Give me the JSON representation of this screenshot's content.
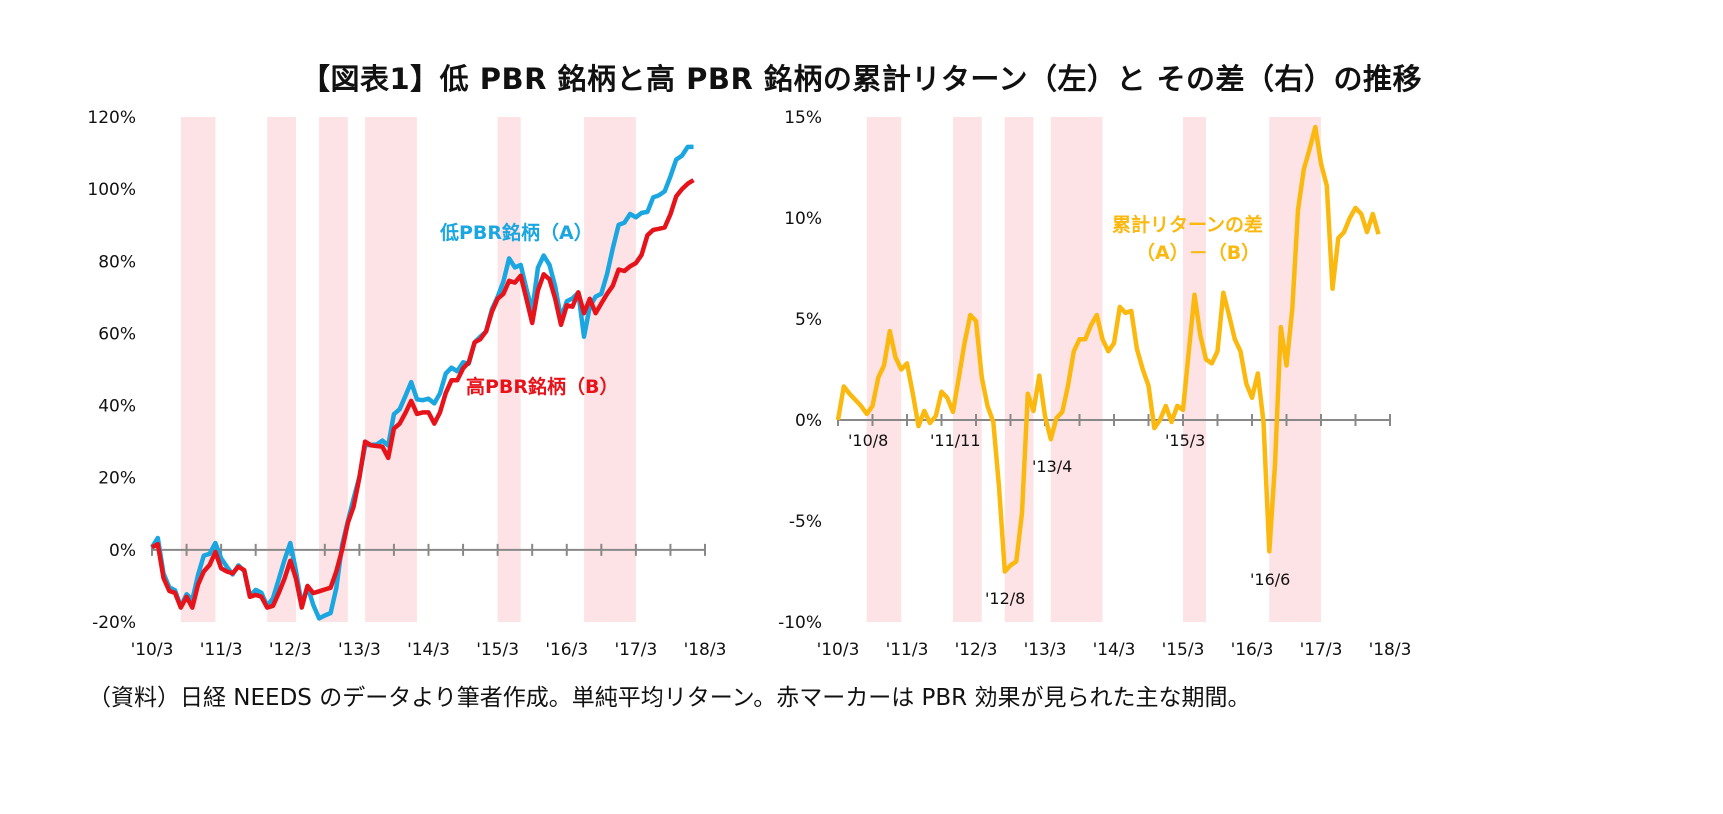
{
  "title": "【図表1】低 PBR 銘柄と高 PBR 銘柄の累計リターン（左）と その差（右）の推移",
  "footer": "（資料）日経 NEEDS のデータより筆者作成。単純平均リターン。赤マーカーは PBR 効果が見られた主な期間。",
  "colors": {
    "low_pbr": "#1aa6e0",
    "high_pbr": "#e6131b",
    "difference": "#fbb80f",
    "shading": "#fde3e5",
    "axis": "#888888"
  },
  "chart_data": [
    {
      "type": "line",
      "x": [
        "2010-03",
        "2010-04",
        "2010-05",
        "2010-06",
        "2010-07",
        "2010-08",
        "2010-09",
        "2010-10",
        "2010-11",
        "2010-12",
        "2011-01",
        "2011-02",
        "2011-03",
        "2011-04",
        "2011-05",
        "2011-06",
        "2011-07",
        "2011-08",
        "2011-09",
        "2011-10",
        "2011-11",
        "2011-12",
        "2012-01",
        "2012-02",
        "2012-03",
        "2012-04",
        "2012-05",
        "2012-06",
        "2012-07",
        "2012-08",
        "2012-09",
        "2012-10",
        "2012-11",
        "2012-12",
        "2013-01",
        "2013-02",
        "2013-03",
        "2013-04",
        "2013-05",
        "2013-06",
        "2013-07",
        "2013-08",
        "2013-09",
        "2013-10",
        "2013-11",
        "2013-12",
        "2014-01",
        "2014-02",
        "2014-03",
        "2014-04",
        "2014-05",
        "2014-06",
        "2014-07",
        "2014-08",
        "2014-09",
        "2014-10",
        "2014-11",
        "2014-12",
        "2015-01",
        "2015-02",
        "2015-03",
        "2015-04",
        "2015-05",
        "2015-06",
        "2015-07",
        "2015-08",
        "2015-09",
        "2015-10",
        "2015-11",
        "2015-12",
        "2016-01",
        "2016-02",
        "2016-03",
        "2016-04",
        "2016-05",
        "2016-06",
        "2016-07",
        "2016-08",
        "2016-09",
        "2016-10",
        "2016-11",
        "2016-12",
        "2017-01",
        "2017-02",
        "2017-03",
        "2017-04",
        "2017-05",
        "2017-06",
        "2017-07",
        "2017-08",
        "2017-09",
        "2017-10",
        "2017-11",
        "2017-12",
        "2018-01"
      ],
      "series": [
        {
          "name": "低PBR銘柄（A）",
          "color": "#1aa6e0",
          "values": [
            0.7,
            3.3,
            -6.5,
            -10.4,
            -11.2,
            -15.7,
            -12.3,
            -13.9,
            -6.9,
            -1.6,
            -1.1,
            1.9,
            -2.3,
            -4.7,
            -6.8,
            -4.3,
            -5.8,
            -12.8,
            -11.1,
            -11.9,
            -15.6,
            -13.4,
            -8.2,
            -2.8,
            1.9,
            -5.9,
            -15.3,
            -10.1,
            -15.3,
            -19.0,
            -18.2,
            -17.5,
            -10.6,
            1.3,
            8.0,
            14.2,
            20.2,
            29.0,
            29.1,
            29.2,
            30.3,
            28.9,
            37.6,
            39.0,
            42.7,
            46.5,
            41.7,
            41.5,
            41.9,
            40.6,
            43.4,
            48.9,
            50.5,
            49.5,
            52.0,
            51.6,
            57.5,
            59.1,
            60.5,
            66.7,
            70.1,
            74.4,
            80.8,
            78.3,
            79.0,
            72.4,
            66.3,
            78.2,
            81.6,
            79.0,
            73.0,
            64.2,
            68.9,
            69.7,
            71.3,
            59.1,
            67.4,
            70.2,
            71.0,
            76.5,
            83.6,
            90.1,
            90.7,
            93.1,
            92.2,
            93.4,
            93.7,
            97.7,
            98.3,
            99.4,
            103.5,
            108.2,
            109.3,
            111.7,
            111.7
          ]
        },
        {
          "name": "高PBR銘柄（B）",
          "color": "#e6131b",
          "values": [
            0.7,
            1.6,
            -7.8,
            -11.4,
            -11.9,
            -16.0,
            -13.0,
            -16.0,
            -9.6,
            -6.0,
            -4.2,
            -0.6,
            -5.1,
            -6.0,
            -6.5,
            -4.7,
            -5.6,
            -13.0,
            -12.5,
            -13.0,
            -16.0,
            -15.5,
            -12.0,
            -8.0,
            -3.0,
            -8.0,
            -16.0,
            -10.0,
            -12.0,
            -11.5,
            -11.0,
            -10.5,
            -6.0,
            0.0,
            7.5,
            12.0,
            20.0,
            30.0,
            29.0,
            28.8,
            28.6,
            25.5,
            33.6,
            35.0,
            38.0,
            41.3,
            37.7,
            38.1,
            38.1,
            35.0,
            38.1,
            43.5,
            47.0,
            47.0,
            50.3,
            52.0,
            57.5,
            58.4,
            60.6,
            66.0,
            69.6,
            71.0,
            74.6,
            74.1,
            76.0,
            69.6,
            62.9,
            71.9,
            76.4,
            75.0,
            69.6,
            62.4,
            67.8,
            67.4,
            71.4,
            65.6,
            69.6,
            65.6,
            68.3,
            71.0,
            73.2,
            77.7,
            77.3,
            78.6,
            79.5,
            81.8,
            87.2,
            88.7,
            89.0,
            89.4,
            93.0,
            98.0,
            100.0,
            101.5,
            102.5
          ]
        }
      ],
      "ylim": [
        -20,
        120
      ],
      "yticks": [
        "120%",
        "100%",
        "80%",
        "60%",
        "40%",
        "20%",
        "0%",
        "-20%"
      ],
      "xtick_labels": [
        "'10/3",
        "'11/3",
        "'12/3",
        "'13/3",
        "'14/3",
        "'15/3",
        "'16/3",
        "'17/3",
        "'18/3"
      ],
      "shaded_periods": [
        [
          "2010-08",
          "2011-01"
        ],
        [
          "2011-11",
          "2012-03"
        ],
        [
          "2012-08",
          "2012-12"
        ],
        [
          "2013-04",
          "2013-12"
        ],
        [
          "2015-03",
          "2015-06"
        ],
        [
          "2016-06",
          "2017-02"
        ]
      ],
      "grid": false
    },
    {
      "type": "line",
      "x": [
        "2010-03",
        "2010-04",
        "2010-05",
        "2010-06",
        "2010-07",
        "2010-08",
        "2010-09",
        "2010-10",
        "2010-11",
        "2010-12",
        "2011-01",
        "2011-02",
        "2011-03",
        "2011-04",
        "2011-05",
        "2011-06",
        "2011-07",
        "2011-08",
        "2011-09",
        "2011-10",
        "2011-11",
        "2011-12",
        "2012-01",
        "2012-02",
        "2012-03",
        "2012-04",
        "2012-05",
        "2012-06",
        "2012-07",
        "2012-08",
        "2012-09",
        "2012-10",
        "2012-11",
        "2012-12",
        "2013-01",
        "2013-02",
        "2013-03",
        "2013-04",
        "2013-05",
        "2013-06",
        "2013-07",
        "2013-08",
        "2013-09",
        "2013-10",
        "2013-11",
        "2013-12",
        "2014-01",
        "2014-02",
        "2014-03",
        "2014-04",
        "2014-05",
        "2014-06",
        "2014-07",
        "2014-08",
        "2014-09",
        "2014-10",
        "2014-11",
        "2014-12",
        "2015-01",
        "2015-02",
        "2015-03",
        "2015-04",
        "2015-05",
        "2015-06",
        "2015-07",
        "2015-08",
        "2015-09",
        "2015-10",
        "2015-11",
        "2015-12",
        "2016-01",
        "2016-02",
        "2016-03",
        "2016-04",
        "2016-05",
        "2016-06",
        "2016-07",
        "2016-08",
        "2016-09",
        "2016-10",
        "2016-11",
        "2016-12",
        "2017-01",
        "2017-02",
        "2017-03",
        "2017-04",
        "2017-05",
        "2017-06",
        "2017-07",
        "2017-08",
        "2017-09",
        "2017-10",
        "2017-11",
        "2017-12",
        "2018-01"
      ],
      "series": [
        {
          "name": "累計リターンの差（A）－（B）",
          "color": "#fbb80f",
          "values": [
            0,
            1.66,
            1.3,
            1.0,
            0.7,
            0.3,
            0.7,
            2.1,
            2.7,
            4.4,
            3.1,
            2.5,
            2.8,
            1.3,
            -0.3,
            0.45,
            -0.15,
            0.2,
            1.4,
            1.1,
            0.4,
            2.1,
            3.8,
            5.2,
            4.9,
            2.1,
            0.7,
            -0.1,
            -3.3,
            -7.5,
            -7.2,
            -7.0,
            -4.6,
            1.3,
            0.45,
            2.2,
            0.2,
            -0.95,
            0.1,
            0.4,
            1.7,
            3.4,
            4.0,
            4.0,
            4.7,
            5.2,
            4.0,
            3.4,
            3.8,
            5.6,
            5.3,
            5.4,
            3.5,
            2.5,
            1.7,
            -0.4,
            0,
            0.7,
            -0.1,
            0.7,
            0.5,
            3.4,
            6.2,
            4.2,
            3.0,
            2.8,
            3.4,
            6.3,
            5.2,
            4.0,
            3.4,
            1.8,
            1.1,
            2.3,
            -0.1,
            -6.5,
            -2.2,
            4.6,
            2.7,
            5.5,
            10.4,
            12.4,
            13.4,
            14.5,
            12.7,
            11.6,
            6.5,
            9.0,
            9.3,
            10.0,
            10.5,
            10.2,
            9.3,
            10.2,
            9.2
          ]
        }
      ],
      "ylim": [
        -10,
        15
      ],
      "yticks": [
        "15%",
        "10%",
        "5%",
        "0%",
        "-5%",
        "-10%"
      ],
      "xtick_labels": [
        "'10/3",
        "'11/3",
        "'12/3",
        "'13/3",
        "'14/3",
        "'15/3",
        "'16/3",
        "'17/3",
        "'18/3"
      ],
      "shaded_periods": [
        [
          "2010-08",
          "2011-01"
        ],
        [
          "2011-11",
          "2012-03"
        ],
        [
          "2012-08",
          "2012-12"
        ],
        [
          "2013-04",
          "2013-12"
        ],
        [
          "2015-03",
          "2015-06"
        ],
        [
          "2016-06",
          "2017-02"
        ]
      ],
      "period_labels": [
        "'10/8",
        "'11/11",
        "'12/8",
        "'13/4",
        "'15/3",
        "'16/6"
      ],
      "grid": false
    }
  ],
  "annotations": {
    "low_pbr": "低PBR銘柄（A）",
    "high_pbr": "高PBR銘柄（B）",
    "diff_line1": "累計リターンの差",
    "diff_line2": "（A）－（B）"
  }
}
